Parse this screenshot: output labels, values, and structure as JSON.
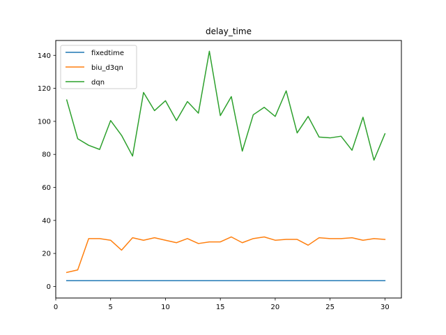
{
  "chart_data": {
    "type": "line",
    "title": "delay_time",
    "xlabel": "",
    "ylabel": "",
    "xlim": [
      0,
      31.5
    ],
    "ylim": [
      -7,
      149
    ],
    "xticks": [
      0,
      5,
      10,
      15,
      20,
      25,
      30
    ],
    "yticks": [
      0,
      20,
      40,
      60,
      80,
      100,
      120,
      140
    ],
    "grid": false,
    "legend_position": "top-left",
    "x": [
      1,
      2,
      3,
      4,
      5,
      6,
      7,
      8,
      9,
      10,
      11,
      12,
      13,
      14,
      15,
      16,
      17,
      18,
      19,
      20,
      21,
      22,
      23,
      24,
      25,
      26,
      27,
      28,
      29,
      30
    ],
    "series": [
      {
        "name": "fixedtime",
        "color": "#1f77b4",
        "values": [
          3.5,
          3.5,
          3.5,
          3.5,
          3.5,
          3.5,
          3.5,
          3.5,
          3.5,
          3.5,
          3.5,
          3.5,
          3.5,
          3.5,
          3.5,
          3.5,
          3.5,
          3.5,
          3.5,
          3.5,
          3.5,
          3.5,
          3.5,
          3.5,
          3.5,
          3.5,
          3.5,
          3.5,
          3.5,
          3.5
        ]
      },
      {
        "name": "biu_d3qn",
        "color": "#ff7f0e",
        "values": [
          8.5,
          10,
          29,
          29,
          28,
          22,
          29.5,
          28,
          29.5,
          28,
          26.5,
          29,
          26,
          27,
          27,
          30,
          26.5,
          29,
          30,
          28,
          28.5,
          28.5,
          25,
          29.5,
          29,
          29,
          29.5,
          28,
          29,
          28.5
        ]
      },
      {
        "name": "dqn",
        "color": "#2ca02c",
        "values": [
          113,
          89.5,
          85.5,
          83,
          100.5,
          91.5,
          79,
          117.5,
          106.5,
          112.5,
          100.5,
          112,
          105,
          142.5,
          103.5,
          115,
          82,
          104,
          108.5,
          103,
          118.5,
          93,
          103,
          90.5,
          90,
          91,
          82.5,
          102.5,
          76.5,
          92.5
        ]
      }
    ]
  }
}
